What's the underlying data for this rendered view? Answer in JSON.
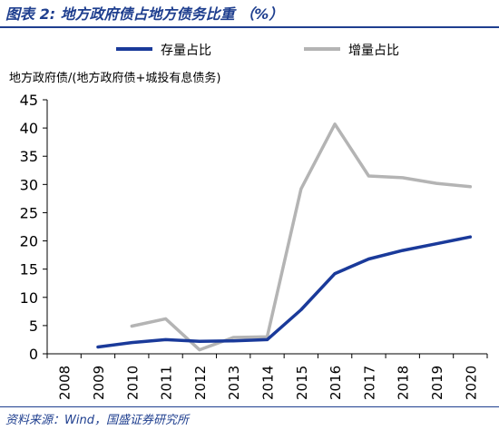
{
  "header": {
    "title": "图表 2:  地方政府债占地方债务比重 （%）"
  },
  "footer": {
    "source": "资料来源：Wind，国盛证券研究所"
  },
  "chart_data": {
    "type": "line",
    "title": "",
    "ylabel": "地方政府债/(地方政府债+城投有息债务)",
    "xlabel": "",
    "categories": [
      "2008",
      "2009",
      "2010",
      "2011",
      "2012",
      "2013",
      "2014",
      "2015",
      "2016",
      "2017",
      "2018",
      "2019",
      "2020"
    ],
    "yticks": [
      "0",
      "5",
      "10",
      "15",
      "20",
      "25",
      "30",
      "35",
      "40",
      "45"
    ],
    "ylim": [
      0,
      45
    ],
    "grid": false,
    "legend_position": "top",
    "series": [
      {
        "name": "存量占比",
        "color": "#1a3a9a",
        "values": [
          null,
          1.2,
          2.0,
          2.5,
          2.2,
          2.3,
          2.5,
          7.8,
          14.2,
          16.8,
          18.3,
          19.5,
          20.7
        ]
      },
      {
        "name": "增量占比",
        "color": "#b4b4b4",
        "values": [
          null,
          null,
          4.9,
          6.2,
          0.7,
          2.9,
          3.0,
          29.2,
          40.7,
          31.5,
          31.2,
          30.2,
          29.6
        ]
      }
    ]
  }
}
